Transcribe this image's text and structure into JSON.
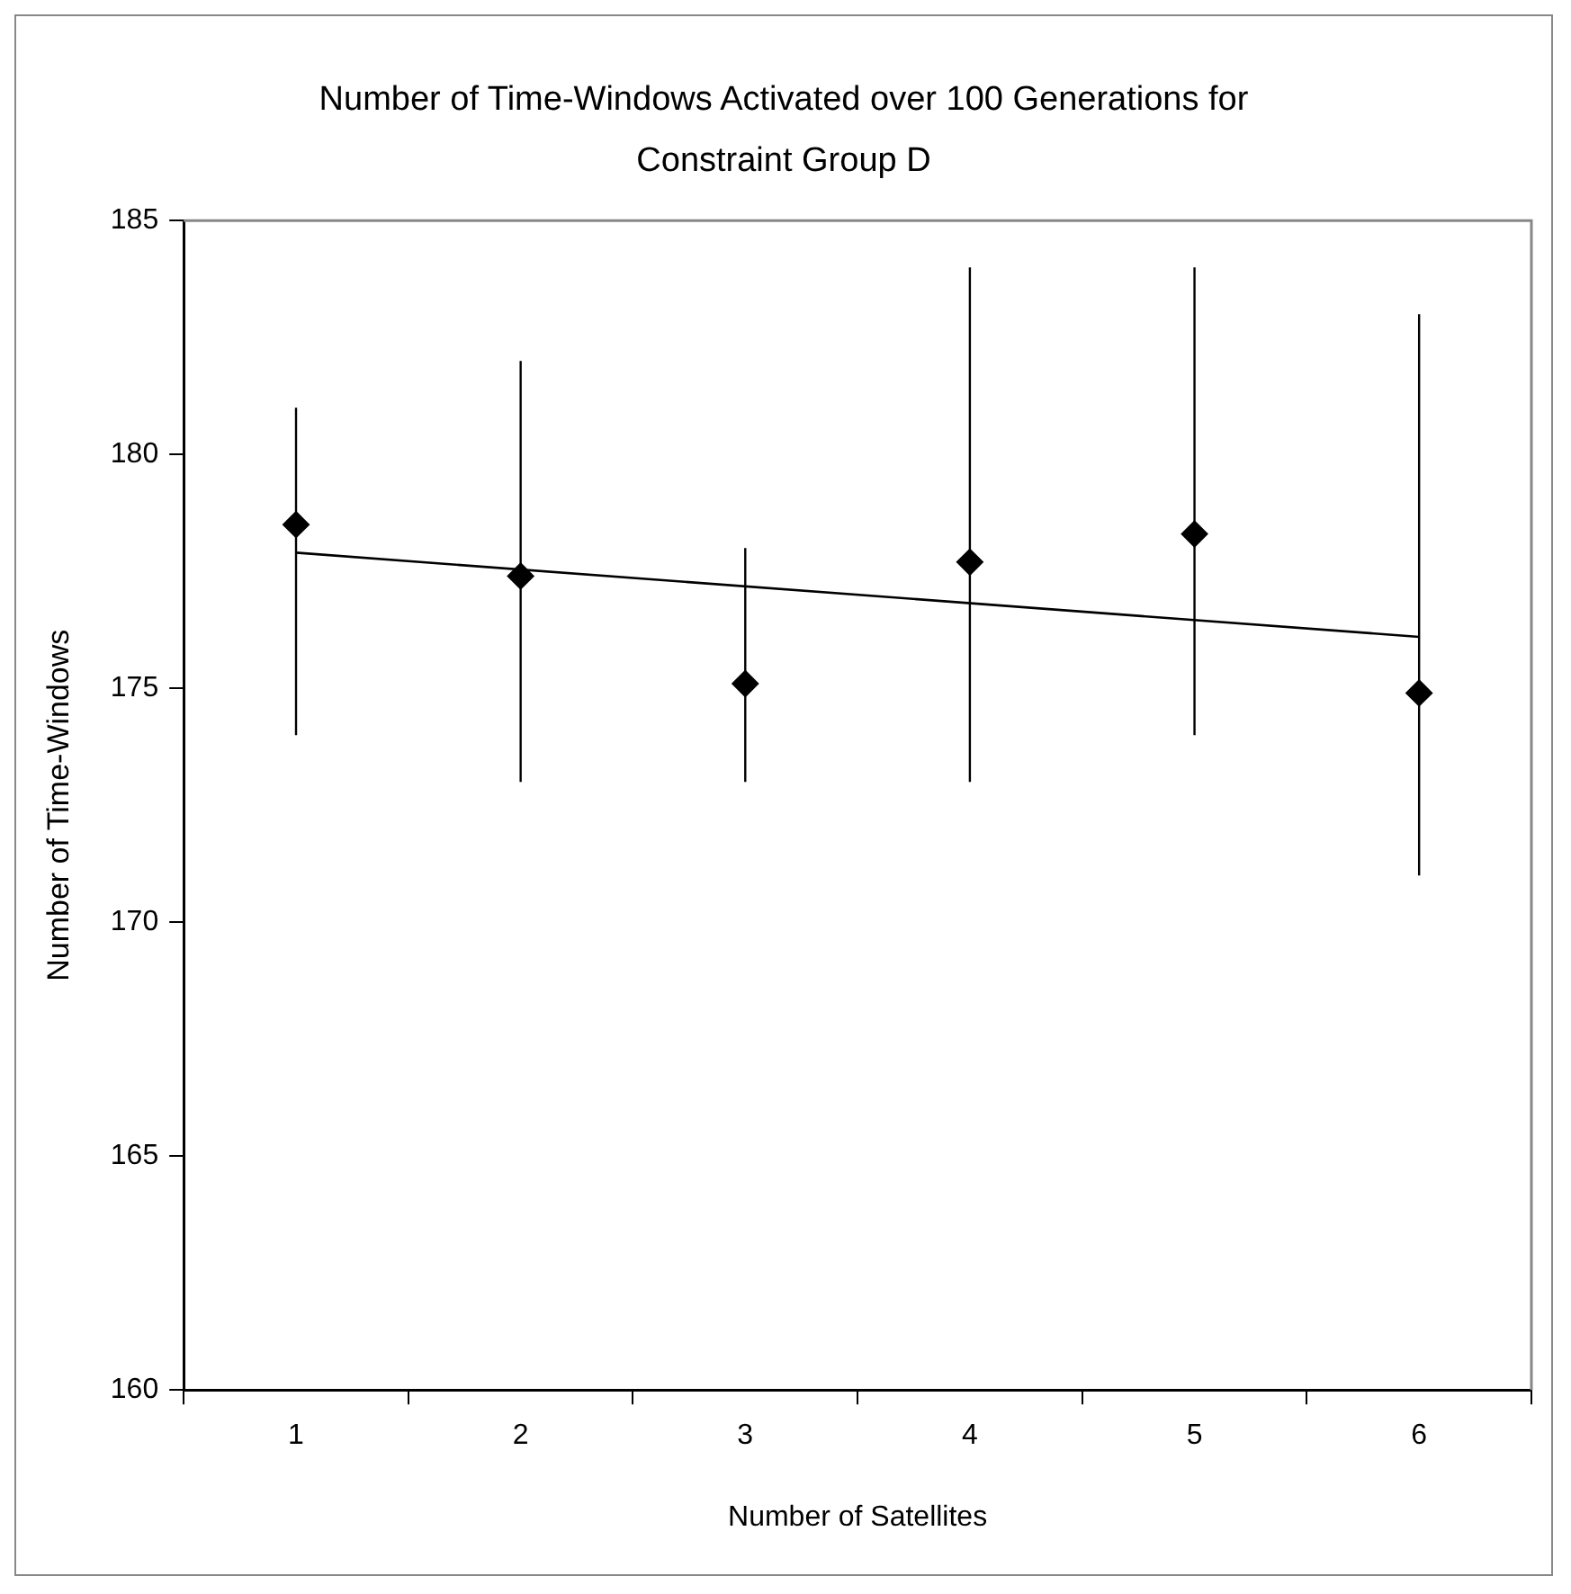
{
  "chart_data": {
    "type": "scatter",
    "title": "Number of Time-Windows Activated over 100 Generations for Constraint Group D",
    "xlabel": "Number of Satellites",
    "ylabel": "Number of Time-Windows",
    "categories": [
      "1",
      "2",
      "3",
      "4",
      "5",
      "6"
    ],
    "series": [
      {
        "color": "#000000",
        "marker": "diamond",
        "values": [
          178.5,
          177.4,
          175.1,
          177.7,
          178.3,
          174.9
        ],
        "errors": [
          [
            174,
            181
          ],
          [
            173,
            182
          ],
          [
            173,
            178
          ],
          [
            173,
            184
          ],
          [
            174,
            184
          ],
          [
            171,
            183
          ]
        ]
      },
      {
        "type": "line",
        "color": "#000000",
        "marker": "none",
        "x": [
          "1",
          "6"
        ],
        "values": [
          177.9,
          176.1
        ]
      }
    ],
    "ylim": [
      160,
      185
    ],
    "yticks": [
      160,
      165,
      170,
      175,
      180,
      185
    ],
    "grid": false,
    "legend": false
  }
}
